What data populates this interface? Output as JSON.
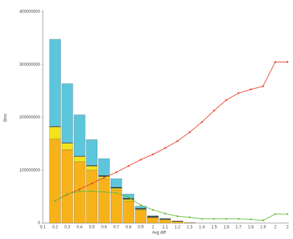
{
  "chart_data": {
    "type": "bar",
    "x_label": "Avg diff",
    "y_label": "Bins",
    "categories": [
      "0.1",
      "0.2",
      "0.3",
      "0.4",
      "0.5",
      "0.6",
      "0.7",
      "0.8",
      "0.9",
      "1",
      "1.1",
      "1.2",
      "1.3",
      "1.4",
      "1.5",
      "1.6",
      "1.7",
      "1.8",
      "1.9",
      "2",
      "2"
    ],
    "ylim": [
      0,
      400000000
    ],
    "yticks": [
      0,
      100000000,
      200000000,
      300000000,
      400000000
    ],
    "series": [
      {
        "type": "bar",
        "color": "#f7b21a",
        "values": [
          null,
          159000000,
          139000000,
          116000000,
          100000000,
          84000000,
          63000000,
          42000000,
          24000000,
          10000000,
          6000000,
          3000000,
          1000000,
          null,
          null,
          null,
          null,
          null,
          null,
          null,
          null
        ]
      },
      {
        "type": "bar",
        "color": "#f2e41c",
        "values": [
          null,
          23000000,
          12000000,
          10000000,
          8000000,
          4000000,
          3000000,
          3000000,
          2000000,
          1000000,
          1000000,
          null,
          null,
          null,
          null,
          null,
          null,
          null,
          null,
          null,
          null
        ]
      },
      {
        "type": "bar",
        "color": "#2b2b2b",
        "values": [
          null,
          1000000,
          1000000,
          1000000,
          1000000,
          2000000,
          2000000,
          2000000,
          2000000,
          2000000,
          1000000,
          1000000,
          null,
          null,
          null,
          null,
          null,
          null,
          null,
          null,
          null
        ]
      },
      {
        "type": "bar",
        "color": "#5cc6dc",
        "values": [
          null,
          165000000,
          112000000,
          78000000,
          49000000,
          32000000,
          16000000,
          8000000,
          4000000,
          1000000,
          1000000,
          null,
          null,
          null,
          null,
          null,
          null,
          null,
          null,
          null,
          null
        ]
      },
      {
        "type": "line",
        "color": "#e8492f",
        "values": [
          null,
          42000000,
          54000000,
          64000000,
          75000000,
          86000000,
          96000000,
          108000000,
          120000000,
          130000000,
          142000000,
          155000000,
          172000000,
          191000000,
          213000000,
          233000000,
          246000000,
          253000000,
          259000000,
          305000000,
          305000000
        ]
      },
      {
        "type": "line",
        "color": "#6abf3c",
        "values": [
          null,
          42000000,
          55000000,
          60000000,
          60000000,
          59000000,
          57000000,
          49000000,
          34000000,
          25000000,
          18000000,
          13000000,
          11000000,
          8000000,
          8000000,
          8000000,
          8000000,
          7000000,
          5000000,
          17000000,
          17000000
        ]
      }
    ]
  }
}
